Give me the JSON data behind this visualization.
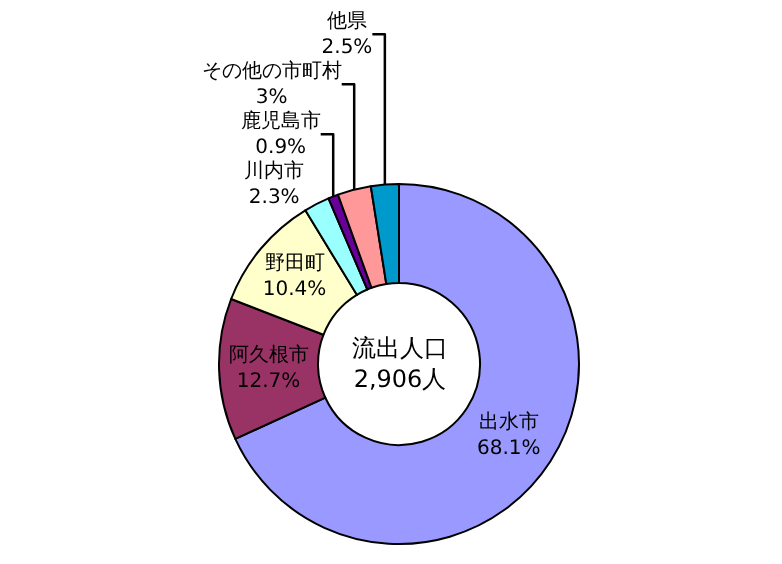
{
  "chart_data": {
    "type": "donut",
    "categories": [
      "出水市",
      "阿久根市",
      "野田町",
      "川内市",
      "鹿児島市",
      "その他の市町村",
      "他県"
    ],
    "values": [
      68.1,
      12.7,
      10.4,
      2.3,
      0.9,
      3,
      2.5
    ],
    "value_labels": [
      "68.1%",
      "12.7%",
      "10.4%",
      "2.3%",
      "0.9%",
      "3%",
      "2.5%"
    ],
    "colors": [
      "#9999ff",
      "#993366",
      "#ffffcc",
      "#99ffff",
      "#660099",
      "#ff9999",
      "#0099cc"
    ],
    "annotations": [
      "流出人口\n2,906人"
    ],
    "legend": false
  }
}
